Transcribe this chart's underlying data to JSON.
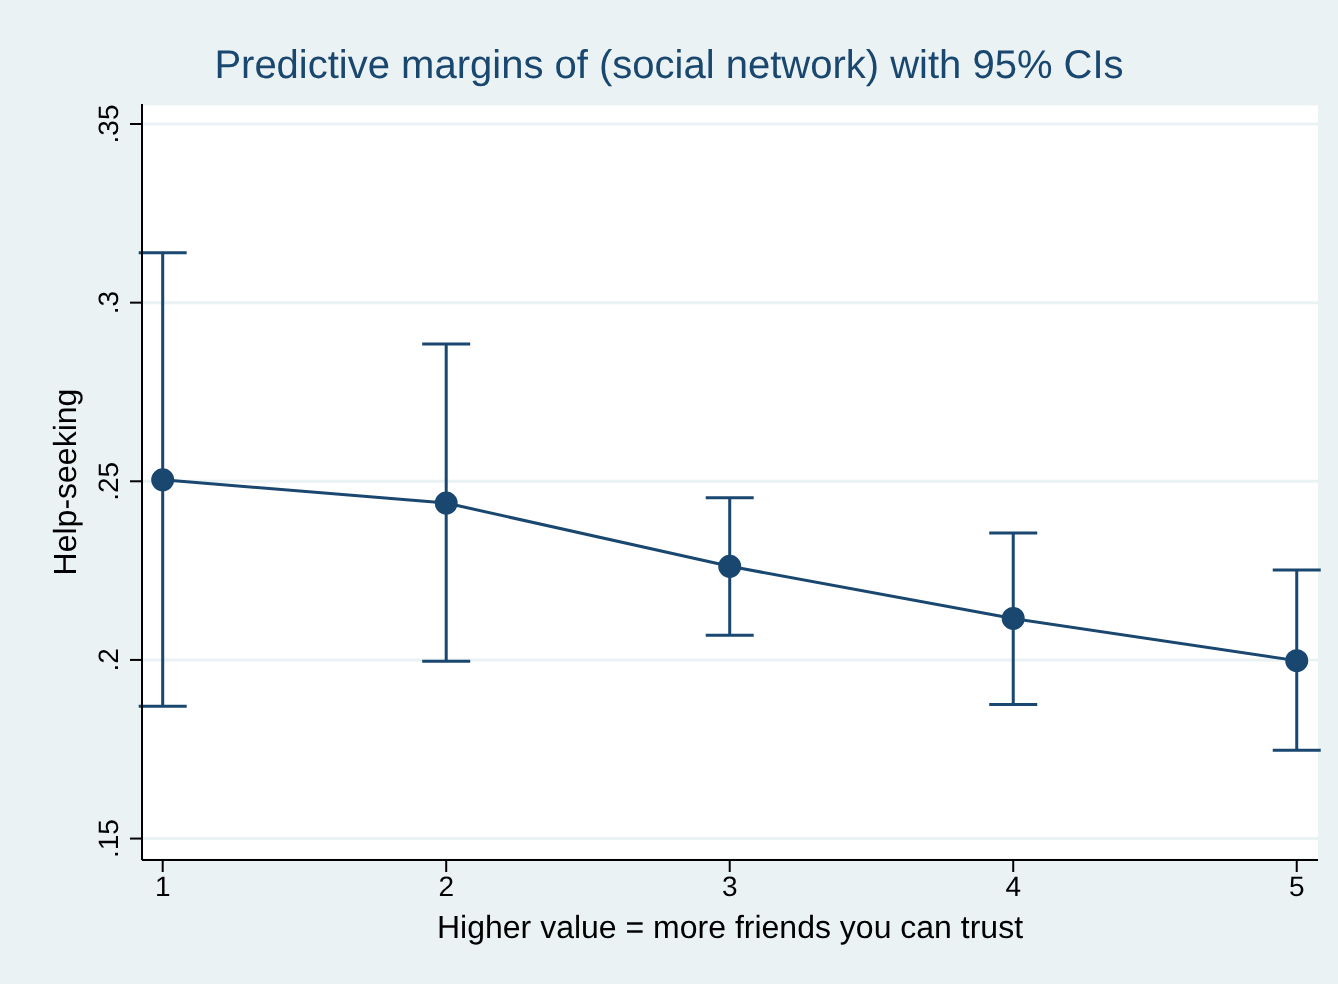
{
  "chart_data": {
    "type": "line",
    "title": "Predictive margins of (social network) with 95% CIs",
    "xlabel": "Higher value = more friends you can trust",
    "ylabel": "Help-seeking",
    "x": [
      1,
      2,
      3,
      4,
      5
    ],
    "series": [
      {
        "color": "#1a476f",
        "values": [
          0.2504,
          0.2439,
          0.2262,
          0.2116,
          0.1998
        ],
        "errors": [
          [
            0.187,
            0.314
          ],
          [
            0.1996,
            0.2884
          ],
          [
            0.2069,
            0.2454
          ],
          [
            0.1875,
            0.2355
          ],
          [
            0.1747,
            0.2252
          ]
        ]
      }
    ],
    "xlim": [
      0.927,
      5.075
    ],
    "xticks": [
      1,
      2,
      3,
      4,
      5
    ],
    "ylim": [
      0.144,
      0.3556
    ],
    "yticks": [
      {
        "value": 0.15,
        "label": ".15"
      },
      {
        "value": 0.2,
        "label": ".2"
      },
      {
        "value": 0.25,
        "label": ".25"
      },
      {
        "value": 0.3,
        "label": ".3"
      },
      {
        "value": 0.35,
        "label": ".35"
      }
    ],
    "grid": "y",
    "marker": "circle",
    "line_style": "solid"
  }
}
